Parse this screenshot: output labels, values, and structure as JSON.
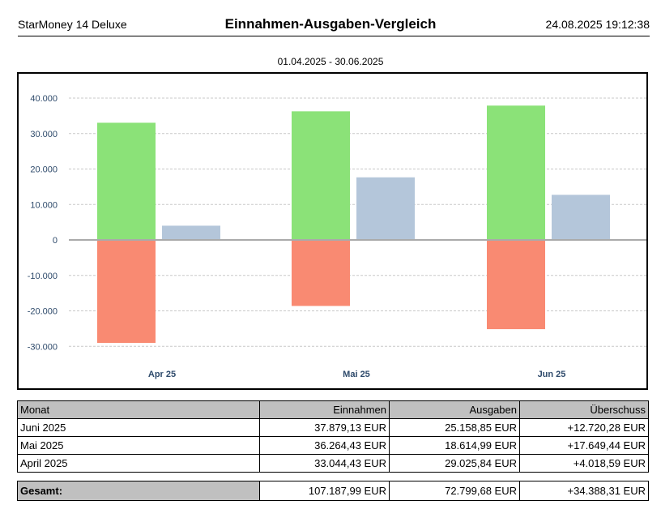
{
  "header": {
    "app_name": "StarMoney 14 Deluxe",
    "report_title": "Einnahmen-Ausgaben-Vergleich",
    "datetime": "24.08.2025 19:12:38"
  },
  "period": "01.04.2025 - 30.06.2025",
  "colors": {
    "income": "#8be278",
    "expense": "#f98a72",
    "surplus": "#b4c6da",
    "axis_text": "#2e4a6b",
    "grid": "#c8c8c8"
  },
  "chart_data": {
    "type": "bar",
    "categories": [
      "Apr 25",
      "Mai 25",
      "Jun 25"
    ],
    "series": [
      {
        "values": [
          33044.43,
          36264.43,
          37879.13
        ]
      },
      {
        "values": [
          -29025.84,
          -18614.99,
          -25158.85
        ]
      },
      {
        "values": [
          4018.59,
          17649.44,
          12720.28
        ]
      }
    ],
    "ylim": [
      -35000,
      45000
    ],
    "yticks": [
      40000,
      30000,
      20000,
      10000,
      0,
      -10000,
      -20000,
      -30000
    ],
    "ytick_labels": [
      "40.000",
      "30.000",
      "20.000",
      "10.000",
      "0",
      "-10.000",
      "-20.000",
      "-30.000"
    ],
    "grid": true,
    "legend": "none"
  },
  "table": {
    "headers": [
      "Monat",
      "Einnahmen",
      "Ausgaben",
      "Überschuss"
    ],
    "rows": [
      [
        "Juni 2025",
        "37.879,13 EUR",
        "25.158,85 EUR",
        "+12.720,28 EUR"
      ],
      [
        "Mai 2025",
        "36.264,43 EUR",
        "18.614,99 EUR",
        "+17.649,44 EUR"
      ],
      [
        "April 2025",
        "33.044,43 EUR",
        "29.025,84 EUR",
        "+4.018,59 EUR"
      ]
    ],
    "total": [
      "Gesamt:",
      "107.187,99 EUR",
      "72.799,68 EUR",
      "+34.388,31 EUR"
    ]
  }
}
